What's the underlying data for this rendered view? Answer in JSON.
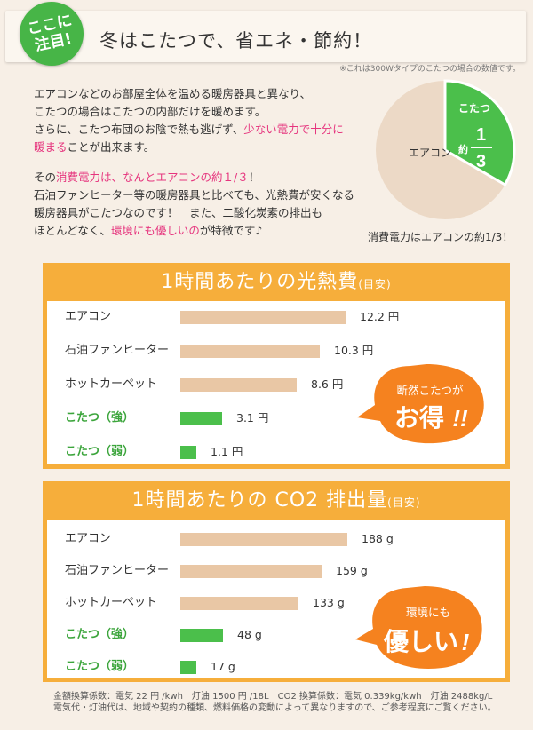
{
  "badge": {
    "line1": "ここに",
    "line2": "注目!"
  },
  "title": "冬はこたつで、省エネ・節約！",
  "note": "※これは300Wタイプのこたつの場合の数値です。",
  "intro": {
    "p1_a": "エアコンなどのお部屋全体を温める暖房器具と異なり、",
    "p1_b": "こたつの場合はこたつの内部だけを暖めます。",
    "p1_c": "さらに、こたつ布団のお陰で熱も逃げず、",
    "p1_c_pink": "少ない電力で十分に",
    "p1_d_pink": "暖まる",
    "p1_d": "ことが出来ます。",
    "p2_a": "その",
    "p2_a_pink": "消費電力は、なんとエアコンの約１/３",
    "p2_a_end": "！",
    "p2_b": "石油ファンヒーター等の暖房器具と比べても、光熱費が安くなる",
    "p2_c": "暖房器具がこたつなのです！　また、二酸化炭素の排出も",
    "p2_d": "ほとんどなく、",
    "p2_d_pink": "環境にも優しいの",
    "p2_d_end": "が特徴です♪"
  },
  "pie": {
    "aircon_label": "エアコン",
    "kotatsu_label": "こたつ",
    "approx": "約",
    "num": "1",
    "den": "3",
    "caption": "消費電力はエアコンの約1/3！"
  },
  "chart_data": [
    {
      "type": "bar",
      "title": "1時間あたりの光熱費",
      "title_note": "(目安)",
      "categories": [
        "エアコン",
        "石油ファンヒーター",
        "ホットカーペット",
        "こたつ（強）",
        "こたつ（弱）"
      ],
      "values": [
        12.2,
        10.3,
        8.6,
        3.1,
        1.1
      ],
      "value_labels": [
        "12.2 円",
        "10.3 円",
        "8.6 円",
        "3.1 円",
        "1.1 円"
      ],
      "unit": "円"
    },
    {
      "type": "bar",
      "title": "1時間あたりの CO2 排出量",
      "title_note": "(目安)",
      "categories": [
        "エアコン",
        "石油ファンヒーター",
        "ホットカーペット",
        "こたつ（強）",
        "こたつ（弱）"
      ],
      "values": [
        188,
        159,
        133,
        48,
        17
      ],
      "value_labels": [
        "188 g",
        "159 g",
        "133 g",
        "48 g",
        "17 g"
      ],
      "unit": "g"
    }
  ],
  "bubble1": {
    "line1": "断然こたつが",
    "line2": "お得",
    "line2_end": "!!"
  },
  "bubble2": {
    "line1": "環境にも",
    "line2": "優しい",
    "line2_end": "!"
  },
  "footer": {
    "line1": "金額換算係数：電気 22 円 /kwh　灯油 1500 円 /18L　CO2 換算係数：電気 0.339kg/kwh　灯油 2488kg/L",
    "line2": "電気代・灯油代は、地域や契約の種類、燃料価格の変動によって異なりますので、ご参考程度にご覧ください。"
  },
  "colors": {
    "orange": "#f6ae3b",
    "bubble": "#f5821f",
    "green": "#4bbf4b",
    "bar": "#e9c7a5",
    "pink": "#e6357e"
  }
}
